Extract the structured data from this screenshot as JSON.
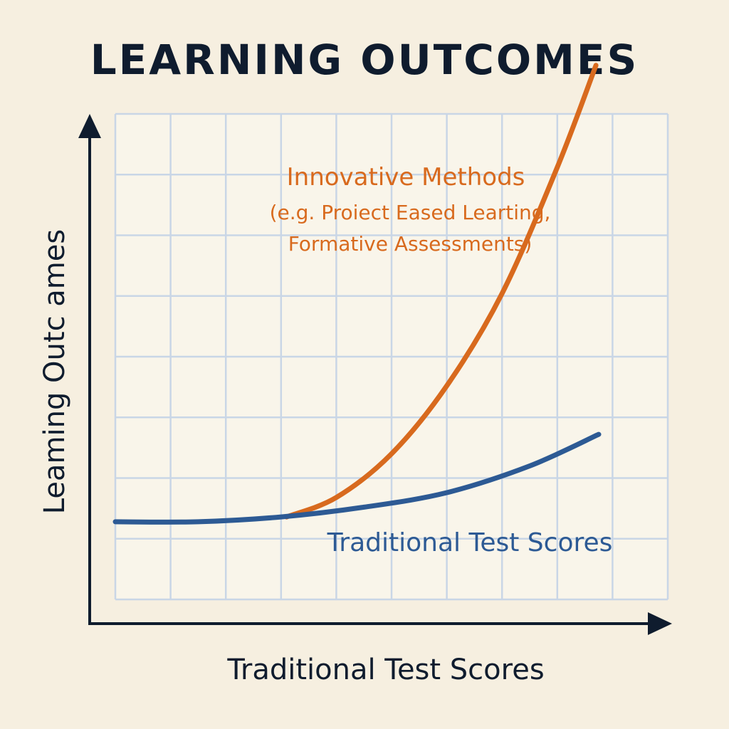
{
  "chart_data": {
    "type": "line",
    "title": "LEARNING OUTCOMES",
    "xlabel": "Traditional Test Scores",
    "ylabel": "Leaming Outc ames",
    "grid": true,
    "xlim": [
      0,
      10
    ],
    "ylim": [
      0,
      10
    ],
    "series": [
      {
        "name": "Traditional Test Scores",
        "color": "#2d5a94",
        "x": [
          0,
          1.5,
          3,
          4.5,
          6,
          7.5,
          8.75
        ],
        "y": [
          1.6,
          1.6,
          1.7,
          1.9,
          2.2,
          2.75,
          3.4
        ]
      },
      {
        "name": "Innovative Methods",
        "note": [
          "(e.g. Proiect Eased Learting,",
          "Formative Assessments)"
        ],
        "color": "#d86a1e",
        "x": [
          3.1,
          4,
          5,
          6,
          7,
          8,
          8.7
        ],
        "y": [
          1.7,
          2.1,
          3.0,
          4.4,
          6.3,
          8.9,
          11.0
        ]
      }
    ]
  }
}
